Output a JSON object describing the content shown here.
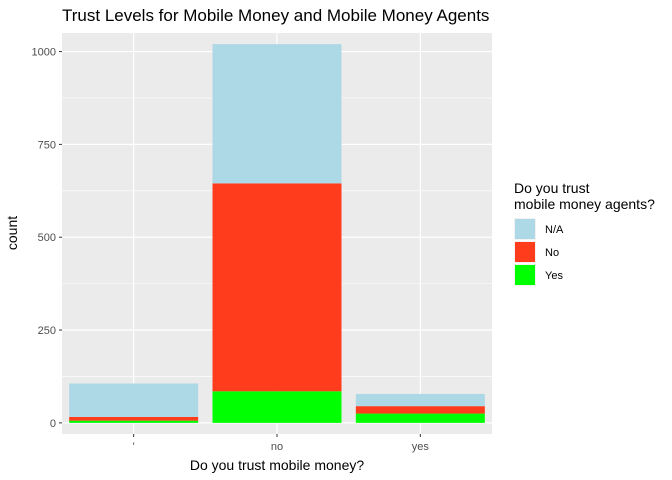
{
  "chart_data": {
    "type": "bar",
    "stacked": true,
    "title": "Trust Levels for Mobile Money and Mobile Money Agents",
    "xlabel": "Do you trust mobile money?",
    "ylabel": "count",
    "categories": [
      "'",
      "no",
      "yes"
    ],
    "ylim": [
      -30,
      1050
    ],
    "yticks": [
      0,
      250,
      500,
      750,
      1000
    ],
    "grid": true,
    "legend": {
      "title": [
        "Do you trust",
        "mobile money agents?"
      ],
      "placement": "right"
    },
    "series": [
      {
        "name": "Yes",
        "color": "#00ff00",
        "values": [
          6,
          85,
          25
        ]
      },
      {
        "name": "No",
        "color": "#ff3d1c",
        "values": [
          10,
          560,
          20
        ]
      },
      {
        "name": "N/A",
        "color": "#add8e6",
        "values": [
          90,
          375,
          33
        ]
      }
    ]
  }
}
